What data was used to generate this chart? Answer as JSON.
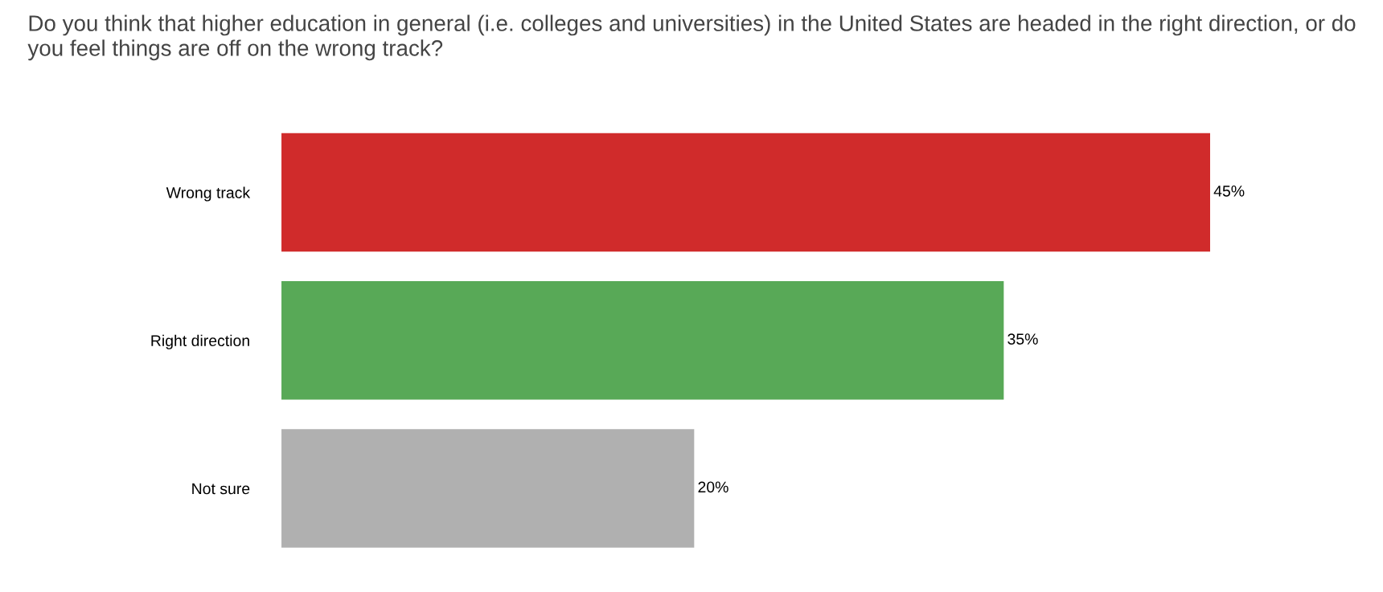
{
  "chart_data": {
    "type": "bar",
    "orientation": "horizontal",
    "title": "Do you think that higher education in general (i.e. colleges and universities) in the United States are headed in the right direction, or do you feel things are off on the wrong track?",
    "categories": [
      "Wrong track",
      "Right direction",
      "Not sure"
    ],
    "values": [
      45,
      35,
      20
    ],
    "value_labels": [
      "45%",
      "35%",
      "20%"
    ],
    "colors": [
      "#d02b2b",
      "#58a957",
      "#b0b0b0"
    ],
    "grid": false,
    "legend": false
  }
}
